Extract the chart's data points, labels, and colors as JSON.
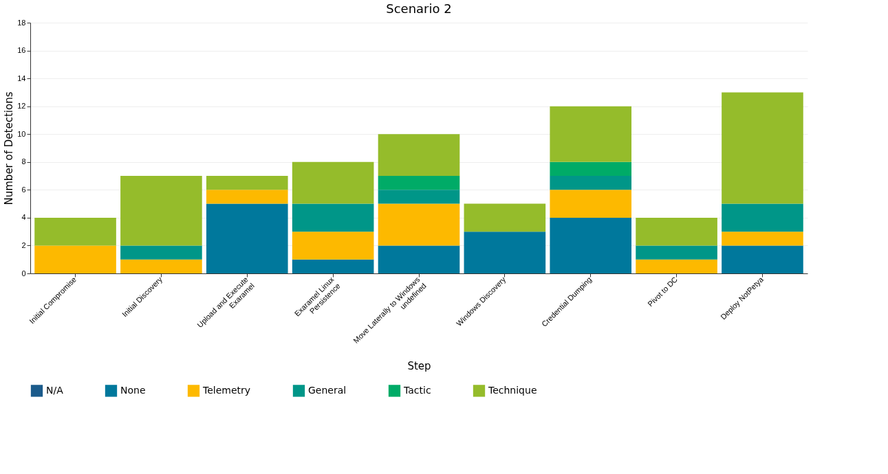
{
  "chart_data": {
    "type": "bar",
    "title": "Scenario 2",
    "xlabel": "Step",
    "ylabel": "Number of Detections",
    "categories": [
      "Initial Compromise",
      "Initial Discovery",
      "Upload and Execute\nExaramel",
      "Exaramel Linux\nPersistence",
      "Move Laterally to Windows\nundefined",
      "Windows Discovery",
      "Credential Dumping",
      "Pivot to DC",
      "Deploy NotPetya"
    ],
    "stacked": true,
    "series": [
      {
        "name": "N/A",
        "color": "#1b5b8b",
        "values": [
          0,
          0,
          0,
          0,
          0,
          0,
          0,
          0,
          0
        ]
      },
      {
        "name": "None",
        "color": "#00789c",
        "values": [
          0,
          0,
          5,
          1,
          2,
          3,
          4,
          0,
          2
        ]
      },
      {
        "name": "Telemetry",
        "color": "#fdb900",
        "values": [
          2,
          1,
          1,
          2,
          3,
          0,
          2,
          1,
          1
        ]
      },
      {
        "name": "General",
        "color": "#009688",
        "values": [
          0,
          1,
          0,
          2,
          1,
          0,
          1,
          1,
          2
        ]
      },
      {
        "name": "Tactic",
        "color": "#00ab67",
        "values": [
          0,
          0,
          0,
          0,
          1,
          0,
          1,
          0,
          0
        ]
      },
      {
        "name": "Technique",
        "color": "#95bc2b",
        "values": [
          2,
          5,
          1,
          3,
          3,
          2,
          4,
          2,
          8
        ]
      }
    ],
    "ylim": [
      0,
      18
    ],
    "yticks": [
      0,
      2,
      4,
      6,
      8,
      10,
      12,
      14,
      16,
      18
    ],
    "grid": "y",
    "legend": "bottom"
  }
}
